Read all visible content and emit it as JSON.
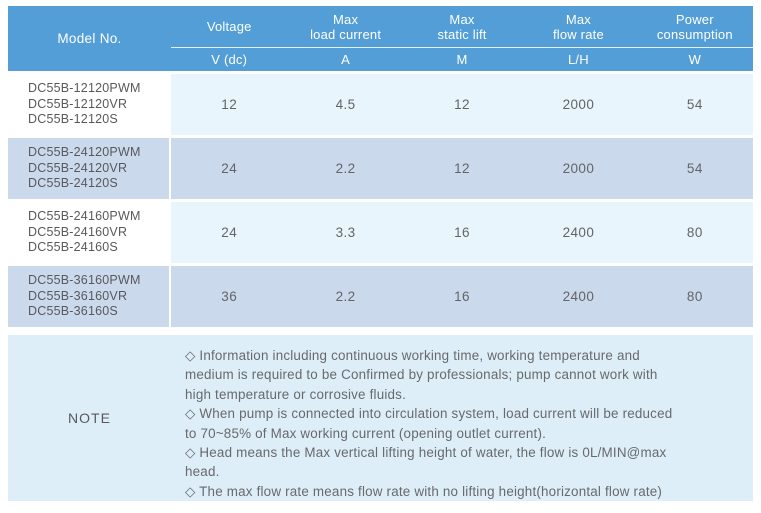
{
  "header": {
    "model_col_label": "Model No.",
    "columns": [
      {
        "line1": "Voltage",
        "line2": "",
        "unit": "V (dc)"
      },
      {
        "line1": "Max",
        "line2": "load current",
        "unit": "A"
      },
      {
        "line1": "Max",
        "line2": "static lift",
        "unit": "M"
      },
      {
        "line1": "Max",
        "line2": "flow rate",
        "unit": "L/H"
      },
      {
        "line1": "Power",
        "line2": "consumption",
        "unit": "W"
      }
    ]
  },
  "rows": [
    {
      "models": [
        "DC55B-12120PWM",
        "DC55B-12120VR",
        "DC55B-12120S"
      ],
      "voltage": "12",
      "max_load_current": "4.5",
      "max_static_lift": "12",
      "max_flow_rate": "2000",
      "power_consumption": "54"
    },
    {
      "models": [
        "DC55B-24120PWM",
        "DC55B-24120VR",
        "DC55B-24120S"
      ],
      "voltage": "24",
      "max_load_current": "2.2",
      "max_static_lift": "12",
      "max_flow_rate": "2000",
      "power_consumption": "54"
    },
    {
      "models": [
        "DC55B-24160PWM",
        "DC55B-24160VR",
        "DC55B-24160S"
      ],
      "voltage": "24",
      "max_load_current": "3.3",
      "max_static_lift": "16",
      "max_flow_rate": "2400",
      "power_consumption": "80"
    },
    {
      "models": [
        "DC55B-36160PWM",
        "DC55B-36160VR",
        "DC55B-36160S"
      ],
      "voltage": "36",
      "max_load_current": "2.2",
      "max_static_lift": "16",
      "max_flow_rate": "2400",
      "power_consumption": "80"
    }
  ],
  "note": {
    "label": "NOTE",
    "lines": [
      "◇ Information including continuous working time, working temperature and",
      "medium is required to be Confirmed by professionals; pump cannot work with",
      "high temperature or corrosive fluids.",
      "◇ When pump is connected into circulation system, load current will be reduced",
      "to 70~85% of Max working current (opening outlet current).",
      "◇ Head means the Max vertical lifting height of water, the flow is 0L/MIN@max",
      "head.",
      "◇ The max flow rate means flow rate with no lifting height(horizontal flow rate)"
    ]
  },
  "colors": {
    "header_bg": "#539ED6",
    "header_text": "#FFFFFF",
    "row_light_data_bg": "#E9F5FC",
    "row_dark_bg": "#CBD9EC",
    "note_bg": "#DDEEF8",
    "body_text": "#58595B"
  }
}
